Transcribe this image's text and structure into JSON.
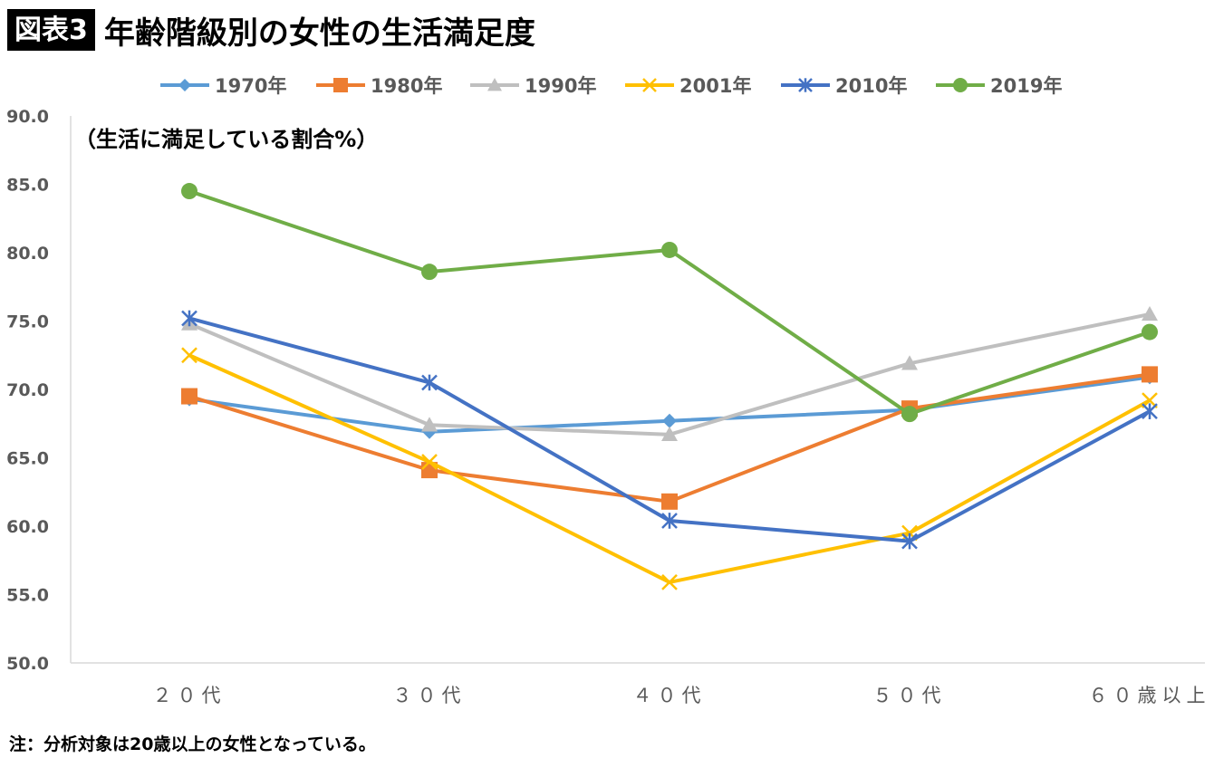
{
  "header": {
    "badge": "図表3",
    "title": "年齢階級別の女性の生活満足度"
  },
  "note": "注：分析対象は20歳以上の女性となっている。",
  "chart_data": {
    "type": "line",
    "unit_label": "（生活に満足している割合%）",
    "categories": [
      "２０代",
      "３０代",
      "４０代",
      "５０代",
      "６０歳以上"
    ],
    "ylim": [
      50,
      90
    ],
    "yticks": [
      "50.0",
      "55.0",
      "60.0",
      "65.0",
      "70.0",
      "75.0",
      "80.0",
      "85.0",
      "90.0"
    ],
    "legend_position": "top",
    "grid": false,
    "series": [
      {
        "name": "1970年",
        "color": "#5B9BD5",
        "marker": "diamond",
        "values": [
          69.3,
          66.9,
          67.7,
          68.5,
          70.9
        ]
      },
      {
        "name": "1980年",
        "color": "#ED7D31",
        "marker": "square",
        "values": [
          69.5,
          64.1,
          61.8,
          68.6,
          71.1
        ]
      },
      {
        "name": "1990年",
        "color": "#BFBFBF",
        "marker": "triangle",
        "values": [
          74.8,
          67.4,
          66.7,
          71.9,
          75.5
        ]
      },
      {
        "name": "2001年",
        "color": "#FFC000",
        "marker": "x",
        "values": [
          72.5,
          64.7,
          55.9,
          59.5,
          69.2
        ]
      },
      {
        "name": "2010年",
        "color": "#4472C4",
        "marker": "star",
        "values": [
          75.2,
          70.5,
          60.4,
          58.9,
          68.4
        ]
      },
      {
        "name": "2019年",
        "color": "#70AD47",
        "marker": "circle",
        "values": [
          84.5,
          78.6,
          80.2,
          68.2,
          74.2
        ]
      }
    ]
  }
}
